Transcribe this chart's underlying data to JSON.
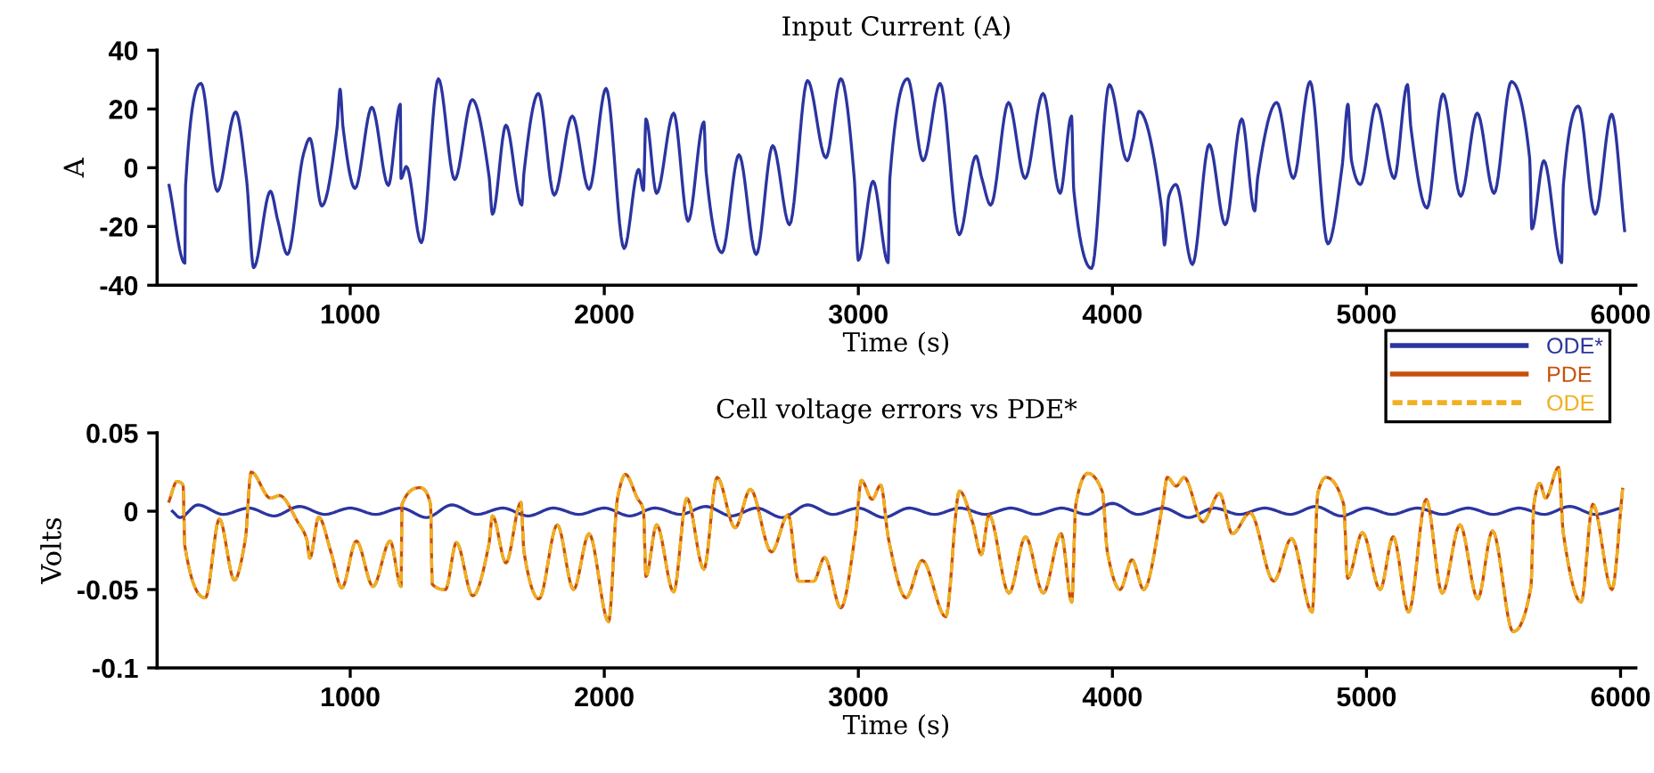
{
  "chart_data": [
    {
      "type": "line",
      "title": "Input Current (A)",
      "xlabel": "Time (s)",
      "ylabel": "A",
      "xlim": [
        240,
        6060
      ],
      "ylim": [
        -40,
        40
      ],
      "xticks": [
        1000,
        2000,
        3000,
        4000,
        5000,
        6000
      ],
      "yticks": [
        -40,
        -20,
        0,
        20,
        40
      ],
      "grid": false,
      "legend": false,
      "series": [
        {
          "color": "#2b35a0",
          "x": [
            287,
            349,
            352,
            413,
            477,
            549,
            592,
            620,
            686,
            715,
            753,
            817,
            841,
            888,
            948,
            960,
            972,
            1019,
            1085,
            1150,
            1197,
            1200,
            1221,
            1280,
            1347,
            1411,
            1480,
            1546,
            1560,
            1613,
            1675,
            1684,
            1741,
            1803,
            1874,
            1940,
            2007,
            2078,
            2135,
            2154,
            2164,
            2206,
            2273,
            2330,
            2392,
            2401,
            2463,
            2530,
            2598,
            2663,
            2729,
            2800,
            2872,
            2931,
            2984,
            3000,
            3058,
            3117,
            3124,
            3194,
            3255,
            3322,
            3397,
            3463,
            3486,
            3521,
            3591,
            3656,
            3727,
            3794,
            3839,
            3848,
            3918,
            3988,
            4058,
            4082,
            4105,
            4194,
            4205,
            4222,
            4250,
            4315,
            4381,
            4444,
            4509,
            4560,
            4572,
            4647,
            4712,
            4778,
            4848,
            4904,
            4927,
            4941,
            4976,
            5039,
            5109,
            5161,
            5175,
            5238,
            5301,
            5371,
            5436,
            5502,
            5570,
            5642,
            5651,
            5698,
            5768,
            5775,
            5834,
            5900,
            5965,
            6016
          ],
          "values": [
            -6,
            -32.5,
            -6,
            28.7,
            -8,
            19,
            -4,
            -34,
            -8,
            -18,
            -29.5,
            5,
            10,
            -13,
            13.5,
            26.7,
            13.5,
            -7,
            20.6,
            -6,
            21.6,
            -3.6,
            0.4,
            -25.5,
            30.3,
            -4,
            23.2,
            -2.6,
            -15.8,
            14.5,
            -12.7,
            -1.6,
            25.3,
            -9.3,
            17.6,
            -7.3,
            27,
            -27.5,
            -0.6,
            -7.7,
            16.6,
            -8.7,
            18.6,
            -18.2,
            15.6,
            -1.6,
            -28.9,
            4.4,
            -29.5,
            7.5,
            -19.4,
            29.7,
            3.4,
            30.3,
            -3.6,
            -31.5,
            -4.6,
            -32.3,
            -3.6,
            30.3,
            2.4,
            28.7,
            -22.8,
            4,
            -3.6,
            -12.7,
            22.2,
            -3.6,
            25.3,
            -8.7,
            17.6,
            -7.7,
            -34.3,
            28.3,
            2.4,
            9.5,
            19.2,
            -14.1,
            -26.3,
            -9.7,
            -5.7,
            -32.9,
            7.9,
            -19.4,
            16.6,
            -14.7,
            -3.2,
            22.2,
            -3.6,
            29.3,
            -25.9,
            0.4,
            21.6,
            2.4,
            -5.7,
            21.6,
            -3.6,
            28.3,
            13.5,
            -13.7,
            25.1,
            -9.7,
            18.6,
            -8.7,
            29.3,
            3.4,
            -20.8,
            2.4,
            -32.3,
            -5.7,
            21,
            -15.8,
            18.2,
            -21.4
          ]
        }
      ]
    },
    {
      "type": "line",
      "title": "Cell voltage errors vs PDE*",
      "xlabel": "Time (s)",
      "ylabel": "Volts",
      "xlim": [
        240,
        6060
      ],
      "ylim": [
        -0.1,
        0.05
      ],
      "xticks": [
        1000,
        2000,
        3000,
        4000,
        5000,
        6000
      ],
      "yticks": [
        {
          "value": -0.1,
          "label": "-0.1"
        },
        {
          "value": -0.05,
          "label": "-0.05"
        },
        {
          "value": 0,
          "label": "0"
        },
        {
          "value": 0.05,
          "label": "0.05"
        }
      ],
      "grid": false,
      "legend": "top right",
      "series": [
        {
          "name": "ODE*",
          "color": "#2b35a0",
          "line_style": "solid",
          "x": [
            300,
            330,
            400,
            500,
            600,
            700,
            800,
            900,
            1000,
            1100,
            1200,
            1300,
            1400,
            1500,
            1600,
            1700,
            1800,
            1900,
            2000,
            2100,
            2200,
            2300,
            2400,
            2500,
            2600,
            2700,
            2800,
            2900,
            3000,
            3100,
            3200,
            3300,
            3400,
            3500,
            3600,
            3700,
            3800,
            3900,
            4000,
            4100,
            4200,
            4300,
            4400,
            4500,
            4600,
            4700,
            4800,
            4900,
            5000,
            5100,
            5200,
            5300,
            5400,
            5500,
            5600,
            5700,
            5800,
            5900,
            6000
          ],
          "values": [
            0.0,
            -0.004,
            0.004,
            -0.002,
            0.002,
            -0.003,
            0.003,
            -0.002,
            0.002,
            -0.002,
            0.002,
            -0.004,
            0.004,
            -0.002,
            0.002,
            -0.003,
            0.002,
            -0.002,
            0.002,
            -0.003,
            0.002,
            -0.002,
            0.003,
            -0.003,
            0.002,
            -0.004,
            0.004,
            -0.002,
            0.002,
            -0.004,
            0.002,
            -0.002,
            0.002,
            -0.002,
            0.002,
            -0.002,
            0.002,
            -0.002,
            0.005,
            -0.002,
            0.002,
            -0.004,
            0.002,
            -0.002,
            0.002,
            -0.002,
            0.003,
            -0.003,
            0.002,
            -0.002,
            0.002,
            -0.002,
            0.002,
            -0.002,
            0.002,
            -0.002,
            0.003,
            -0.002,
            0.002
          ]
        },
        {
          "name": "PDE",
          "color": "#c8500a",
          "line_style": "solid",
          "x": [
            287,
            318,
            342,
            349,
            430,
            485,
            544,
            587,
            610,
            686,
            722,
            793,
            829,
            841,
            876,
            924,
            967,
            1024,
            1090,
            1157,
            1200,
            1204,
            1276,
            1316,
            1323,
            1375,
            1418,
            1482,
            1546,
            1560,
            1613,
            1672,
            1684,
            1743,
            1815,
            1879,
            1940,
            2017,
            2052,
            2083,
            2130,
            2154,
            2164,
            2206,
            2273,
            2325,
            2392,
            2444,
            2515,
            2575,
            2658,
            2724,
            2765,
            2824,
            2867,
            2931,
            2988,
            3012,
            3054,
            3088,
            3119,
            3188,
            3251,
            3344,
            3398,
            3449,
            3484,
            3514,
            3593,
            3658,
            3728,
            3798,
            3840,
            3856,
            3903,
            3961,
            3980,
            4030,
            4077,
            4123,
            4198,
            4216,
            4251,
            4282,
            4356,
            4421,
            4472,
            4542,
            4635,
            4705,
            4786,
            4809,
            4840,
            4910,
            4926,
            4984,
            5054,
            5105,
            5166,
            5235,
            5298,
            5368,
            5438,
            5496,
            5577,
            5647,
            5659,
            5682,
            5705,
            5756,
            5775,
            5845,
            5891,
            5966,
            6008
          ],
          "values": [
            0.0064,
            0.019,
            0.0167,
            -0.022,
            -0.0553,
            -0.005,
            -0.044,
            -0.018,
            0.025,
            0.0083,
            0.01,
            -0.0068,
            -0.018,
            -0.03,
            -0.0038,
            -0.026,
            -0.049,
            -0.019,
            -0.048,
            -0.019,
            -0.048,
            0.0045,
            0.015,
            0.0045,
            -0.0466,
            -0.05,
            -0.02,
            -0.054,
            -0.021,
            -0.003,
            -0.033,
            0.0057,
            -0.026,
            -0.056,
            -0.0087,
            -0.05,
            -0.0144,
            -0.0705,
            0.0083,
            0.0235,
            0.0083,
            0.0008,
            -0.0417,
            -0.0087,
            -0.0515,
            0.0083,
            -0.037,
            0.0216,
            -0.0106,
            0.014,
            -0.026,
            -0.0023,
            -0.0447,
            -0.0447,
            -0.0295,
            -0.0617,
            -0.0144,
            0.0197,
            0.0076,
            0.0167,
            -0.018,
            -0.0553,
            -0.0314,
            -0.0674,
            0.0129,
            -0.0068,
            -0.0277,
            -0.0023,
            -0.0523,
            -0.0163,
            -0.0523,
            -0.0144,
            -0.058,
            0.0045,
            0.0242,
            0.0121,
            -0.026,
            -0.05,
            -0.031,
            -0.05,
            0.0045,
            0.0216,
            0.016,
            0.0216,
            -0.0068,
            0.0114,
            -0.0144,
            -0.001,
            -0.0447,
            -0.0174,
            -0.0644,
            0.0121,
            0.0216,
            0.0045,
            -0.0428,
            -0.0136,
            -0.05,
            -0.0163,
            -0.0644,
            0.0076,
            -0.0523,
            -0.0087,
            -0.056,
            -0.0125,
            -0.0769,
            -0.0485,
            0.0045,
            0.0178,
            0.0083,
            0.028,
            -0.0144,
            -0.058,
            0.0045,
            -0.05,
            0.014
          ]
        },
        {
          "name": "ODE",
          "color": "#f0b020",
          "line_style": "dashed",
          "x": [
            287,
            318,
            342,
            349,
            430,
            485,
            544,
            587,
            610,
            686,
            722,
            793,
            829,
            841,
            876,
            924,
            967,
            1024,
            1090,
            1157,
            1200,
            1204,
            1276,
            1316,
            1323,
            1375,
            1418,
            1482,
            1546,
            1560,
            1613,
            1672,
            1684,
            1743,
            1815,
            1879,
            1940,
            2017,
            2052,
            2083,
            2130,
            2154,
            2164,
            2206,
            2273,
            2325,
            2392,
            2444,
            2515,
            2575,
            2658,
            2724,
            2765,
            2824,
            2867,
            2931,
            2988,
            3012,
            3054,
            3088,
            3119,
            3188,
            3251,
            3344,
            3398,
            3449,
            3484,
            3514,
            3593,
            3658,
            3728,
            3798,
            3840,
            3856,
            3903,
            3961,
            3980,
            4030,
            4077,
            4123,
            4198,
            4216,
            4251,
            4282,
            4356,
            4421,
            4472,
            4542,
            4635,
            4705,
            4786,
            4809,
            4840,
            4910,
            4926,
            4984,
            5054,
            5105,
            5166,
            5235,
            5298,
            5368,
            5438,
            5496,
            5577,
            5647,
            5659,
            5682,
            5705,
            5756,
            5775,
            5845,
            5891,
            5966,
            6008
          ],
          "values": [
            0.0064,
            0.019,
            0.0167,
            -0.022,
            -0.0553,
            -0.005,
            -0.044,
            -0.018,
            0.025,
            0.0083,
            0.01,
            -0.0068,
            -0.018,
            -0.03,
            -0.0038,
            -0.026,
            -0.049,
            -0.019,
            -0.048,
            -0.019,
            -0.048,
            0.0045,
            0.015,
            0.0045,
            -0.0466,
            -0.05,
            -0.02,
            -0.054,
            -0.021,
            -0.003,
            -0.033,
            0.0057,
            -0.026,
            -0.056,
            -0.0087,
            -0.05,
            -0.0144,
            -0.0705,
            0.0083,
            0.0235,
            0.0083,
            0.0008,
            -0.0417,
            -0.0087,
            -0.0515,
            0.0083,
            -0.037,
            0.0216,
            -0.0106,
            0.014,
            -0.026,
            -0.0023,
            -0.0447,
            -0.0447,
            -0.0295,
            -0.0617,
            -0.0144,
            0.0197,
            0.0076,
            0.0167,
            -0.018,
            -0.0553,
            -0.0314,
            -0.0674,
            0.0129,
            -0.0068,
            -0.0277,
            -0.0023,
            -0.0523,
            -0.0163,
            -0.0523,
            -0.0144,
            -0.058,
            0.0045,
            0.0242,
            0.0121,
            -0.026,
            -0.05,
            -0.031,
            -0.05,
            0.0045,
            0.0216,
            0.016,
            0.0216,
            -0.0068,
            0.0114,
            -0.0144,
            -0.001,
            -0.0447,
            -0.0174,
            -0.0644,
            0.0121,
            0.0216,
            0.0045,
            -0.0428,
            -0.0136,
            -0.05,
            -0.0163,
            -0.0644,
            0.0076,
            -0.0523,
            -0.0087,
            -0.056,
            -0.0125,
            -0.0769,
            -0.0485,
            0.0045,
            0.0178,
            0.0083,
            0.028,
            -0.0144,
            -0.058,
            0.0045,
            -0.05,
            0.014
          ]
        }
      ]
    }
  ]
}
